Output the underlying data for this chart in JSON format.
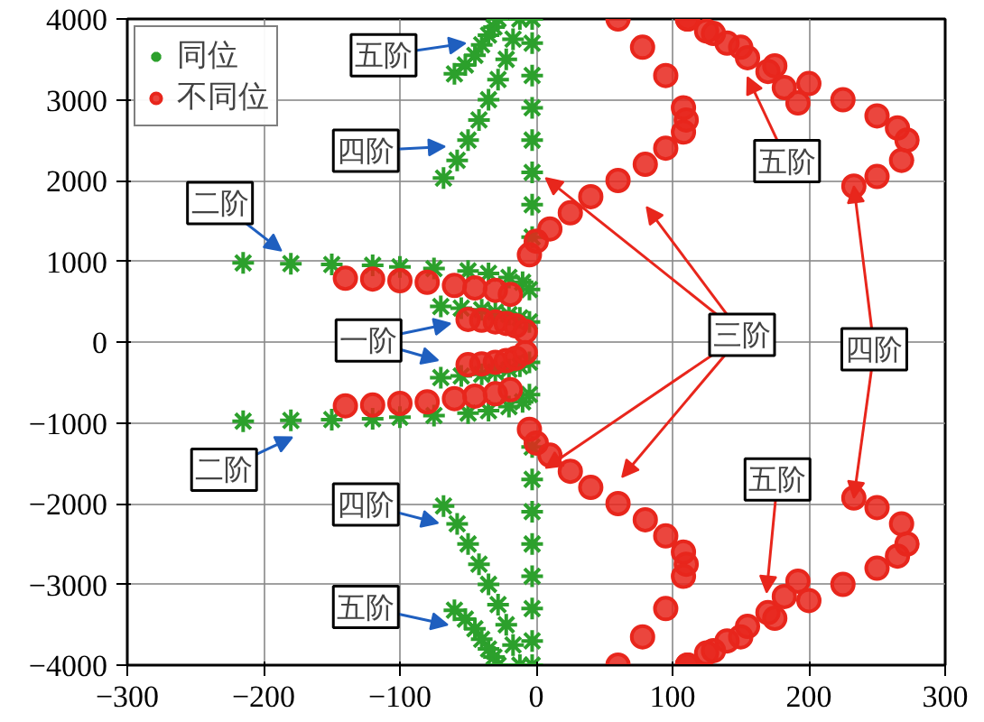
{
  "chart_data": {
    "type": "scatter",
    "xlim": [
      -300,
      300
    ],
    "ylim": [
      -4000,
      4000
    ],
    "xticks": [
      -300,
      -200,
      -100,
      0,
      100,
      200,
      300
    ],
    "yticks": [
      -4000,
      -3000,
      -2000,
      -1000,
      0,
      1000,
      2000,
      3000,
      4000
    ],
    "grid": true,
    "legend": "top left",
    "series": [
      {
        "name": "同位",
        "color": "#2ca02c",
        "marker": "cross",
        "x": [
          -215,
          -180,
          -150,
          -120,
          -100,
          -75,
          -50,
          -35,
          -20,
          -10,
          -5,
          -215,
          -180,
          -150,
          -120,
          -100,
          -75,
          -50,
          -35,
          -20,
          -10,
          -5,
          -70,
          -55,
          -40,
          -30,
          -20,
          -12,
          -5,
          -70,
          -55,
          -40,
          -30,
          -20,
          -12,
          -5,
          -68,
          -58,
          -50,
          -42,
          -35,
          -28,
          -22,
          -17,
          -12,
          -68,
          -58,
          -50,
          -42,
          -35,
          -28,
          -22,
          -17,
          -12,
          -60,
          -52,
          -45,
          -40,
          -35,
          -31,
          -28,
          -60,
          -52,
          -45,
          -40,
          -35,
          -31,
          -28,
          -3,
          -3,
          -3,
          -3,
          -3,
          -3,
          -3,
          -3,
          -3,
          -3,
          -3,
          -3,
          -3,
          -3,
          -3,
          -3
        ],
        "values": [
          980,
          970,
          960,
          950,
          930,
          910,
          880,
          850,
          800,
          740,
          650,
          -980,
          -970,
          -960,
          -950,
          -930,
          -910,
          -880,
          -850,
          -800,
          -740,
          -650,
          440,
          420,
          400,
          370,
          340,
          300,
          250,
          -440,
          -420,
          -400,
          -370,
          -340,
          -300,
          -250,
          2030,
          2250,
          2500,
          2750,
          3000,
          3250,
          3500,
          3750,
          4000,
          -2030,
          -2250,
          -2500,
          -2750,
          -3000,
          -3250,
          -3500,
          -3750,
          -4000,
          3320,
          3430,
          3550,
          3680,
          3800,
          3900,
          4000,
          -3320,
          -3430,
          -3550,
          -3680,
          -3800,
          -3900,
          -4000,
          1300,
          1700,
          2100,
          2500,
          2900,
          3300,
          3700,
          4000,
          -1300,
          -1700,
          -2100,
          -2500,
          -2900,
          -3300,
          -3700,
          -4000
        ]
      },
      {
        "name": "不同位",
        "color": "#e8261c",
        "marker": "circle",
        "x": [
          -140,
          -120,
          -100,
          -80,
          -60,
          -45,
          -30,
          -19,
          -140,
          -120,
          -100,
          -80,
          -60,
          -45,
          -30,
          -19,
          -50,
          -40,
          -30,
          -22,
          -15,
          -8,
          -50,
          -40,
          -30,
          -22,
          -15,
          -8,
          -5,
          0,
          10,
          25,
          40,
          60,
          80,
          95,
          108,
          110,
          108,
          95,
          78,
          60,
          -5,
          0,
          10,
          25,
          40,
          60,
          80,
          95,
          108,
          110,
          108,
          95,
          78,
          60,
          111,
          125,
          140,
          155,
          170,
          182,
          192,
          111,
          125,
          140,
          155,
          170,
          182,
          192,
          111,
          130,
          150,
          175,
          200,
          225,
          250,
          265,
          272,
          268,
          250,
          233,
          111,
          130,
          150,
          175,
          200,
          225,
          250,
          265,
          272,
          268,
          250,
          233
        ],
        "values": [
          790,
          780,
          760,
          740,
          700,
          670,
          640,
          590,
          -790,
          -780,
          -760,
          -740,
          -700,
          -670,
          -640,
          -590,
          280,
          270,
          250,
          230,
          200,
          130,
          -280,
          -270,
          -250,
          -230,
          -200,
          -130,
          1080,
          1250,
          1400,
          1600,
          1800,
          2000,
          2200,
          2400,
          2600,
          2750,
          2900,
          3300,
          3650,
          4000,
          -1080,
          -1250,
          -1400,
          -1600,
          -1800,
          -2000,
          -2200,
          -2400,
          -2600,
          -2750,
          -2900,
          -3300,
          -3650,
          -4000,
          4000,
          3850,
          3700,
          3520,
          3350,
          3150,
          2960,
          -4000,
          -3850,
          -3700,
          -3520,
          -3350,
          -3150,
          -2960,
          4000,
          3820,
          3650,
          3420,
          3200,
          3000,
          2800,
          2650,
          2500,
          2250,
          2050,
          1930,
          -4000,
          -3820,
          -3650,
          -3420,
          -3200,
          -3000,
          -2800,
          -2650,
          -2500,
          -2250,
          -2050,
          -1930
        ]
      }
    ],
    "annotations": [
      {
        "text": "五阶",
        "x": -52,
        "y": 3700
      },
      {
        "text": "四阶",
        "x": -67,
        "y": 2420
      },
      {
        "text": "二阶",
        "x": -187,
        "y": 1130
      },
      {
        "text": "一阶",
        "x": -63,
        "y": 230
      },
      {
        "text": "二阶",
        "x": -179,
        "y": -1180
      },
      {
        "text": "四阶",
        "x": -72,
        "y": -2240
      },
      {
        "text": "五阶",
        "x": -65,
        "y": -3500
      },
      {
        "text": "三阶",
        "x": 7,
        "y": 2030
      },
      {
        "text": "五阶",
        "x": 155,
        "y": 3280
      },
      {
        "text": "四阶",
        "x": 233,
        "y": 1930
      },
      {
        "text": "五阶",
        "x": 169,
        "y": -3100
      }
    ]
  }
}
